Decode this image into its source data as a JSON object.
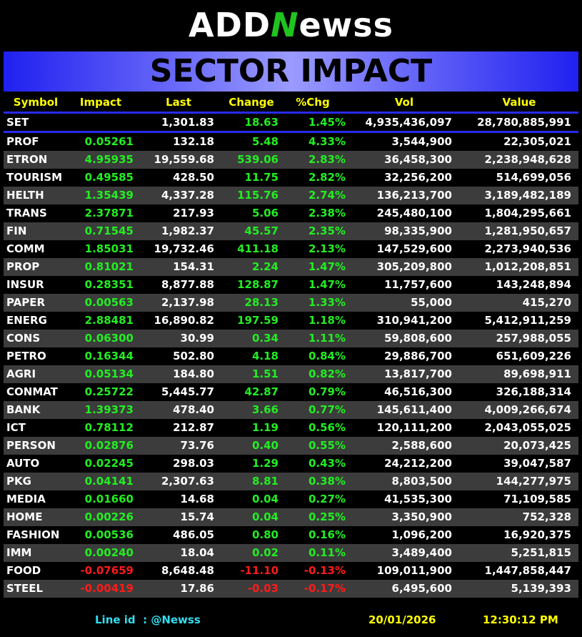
{
  "header": {
    "logo": [
      "ADD",
      "N",
      "ewss"
    ],
    "title": "SECTOR IMPACT"
  },
  "table": {
    "columns": [
      "Symbol",
      "Impact",
      "Last",
      "Change",
      "%Chg",
      "Vol",
      "Value"
    ],
    "index_row": [
      "SET",
      "",
      "1,301.83",
      "18.63",
      "1.45%",
      "4,935,436,097",
      "28,780,885,991"
    ],
    "rows": [
      [
        "PROF",
        "0.05261",
        "132.18",
        "5.48",
        "4.33%",
        "3,544,900",
        "22,305,021"
      ],
      [
        "ETRON",
        "4.95935",
        "19,559.68",
        "539.06",
        "2.83%",
        "36,458,300",
        "2,238,948,628"
      ],
      [
        "TOURISM",
        "0.49585",
        "428.50",
        "11.75",
        "2.82%",
        "32,256,200",
        "514,699,056"
      ],
      [
        "HELTH",
        "1.35439",
        "4,337.28",
        "115.76",
        "2.74%",
        "136,213,700",
        "3,189,482,189"
      ],
      [
        "TRANS",
        "2.37871",
        "217.93",
        "5.06",
        "2.38%",
        "245,480,100",
        "1,804,295,661"
      ],
      [
        "FIN",
        "0.71545",
        "1,982.37",
        "45.57",
        "2.35%",
        "98,335,900",
        "1,281,950,657"
      ],
      [
        "COMM",
        "1.85031",
        "19,732.46",
        "411.18",
        "2.13%",
        "147,529,600",
        "2,273,940,536"
      ],
      [
        "PROP",
        "0.81021",
        "154.31",
        "2.24",
        "1.47%",
        "305,209,800",
        "1,012,208,851"
      ],
      [
        "INSUR",
        "0.28351",
        "8,877.88",
        "128.87",
        "1.47%",
        "11,757,600",
        "143,248,894"
      ],
      [
        "PAPER",
        "0.00563",
        "2,137.98",
        "28.13",
        "1.33%",
        "55,000",
        "415,270"
      ],
      [
        "ENERG",
        "2.88481",
        "16,890.82",
        "197.59",
        "1.18%",
        "310,941,200",
        "5,412,911,259"
      ],
      [
        "CONS",
        "0.06300",
        "30.99",
        "0.34",
        "1.11%",
        "59,808,600",
        "257,988,055"
      ],
      [
        "PETRO",
        "0.16344",
        "502.80",
        "4.18",
        "0.84%",
        "29,886,700",
        "651,609,226"
      ],
      [
        "AGRI",
        "0.05134",
        "184.80",
        "1.51",
        "0.82%",
        "13,817,700",
        "89,698,911"
      ],
      [
        "CONMAT",
        "0.25722",
        "5,445.77",
        "42.87",
        "0.79%",
        "46,516,300",
        "326,188,314"
      ],
      [
        "BANK",
        "1.39373",
        "478.40",
        "3.66",
        "0.77%",
        "145,611,400",
        "4,009,266,674"
      ],
      [
        "ICT",
        "0.78112",
        "212.87",
        "1.19",
        "0.56%",
        "120,111,200",
        "2,043,055,025"
      ],
      [
        "PERSON",
        "0.02876",
        "73.76",
        "0.40",
        "0.55%",
        "2,588,600",
        "20,073,425"
      ],
      [
        "AUTO",
        "0.02245",
        "298.03",
        "1.29",
        "0.43%",
        "24,212,200",
        "39,047,587"
      ],
      [
        "PKG",
        "0.04141",
        "2,307.63",
        "8.81",
        "0.38%",
        "8,803,500",
        "144,277,975"
      ],
      [
        "MEDIA",
        "0.01660",
        "14.68",
        "0.04",
        "0.27%",
        "41,535,300",
        "71,109,585"
      ],
      [
        "HOME",
        "0.00226",
        "15.74",
        "0.04",
        "0.25%",
        "3,350,900",
        "752,328"
      ],
      [
        "FASHION",
        "0.00536",
        "486.05",
        "0.80",
        "0.16%",
        "1,096,200",
        "16,920,375"
      ],
      [
        "IMM",
        "0.00240",
        "18.04",
        "0.02",
        "0.11%",
        "3,489,400",
        "5,251,815"
      ],
      [
        "FOOD",
        "-0.07659",
        "8,648.48",
        "-11.10",
        "-0.13%",
        "109,011,900",
        "1,447,858,447"
      ],
      [
        "STEEL",
        "-0.00419",
        "17.86",
        "-0.03",
        "-0.17%",
        "6,495,600",
        "5,139,393"
      ]
    ]
  },
  "footer": {
    "line_id": "Line id  : @Newss",
    "date": "20/01/2026",
    "time": "12:30:12 PM"
  }
}
